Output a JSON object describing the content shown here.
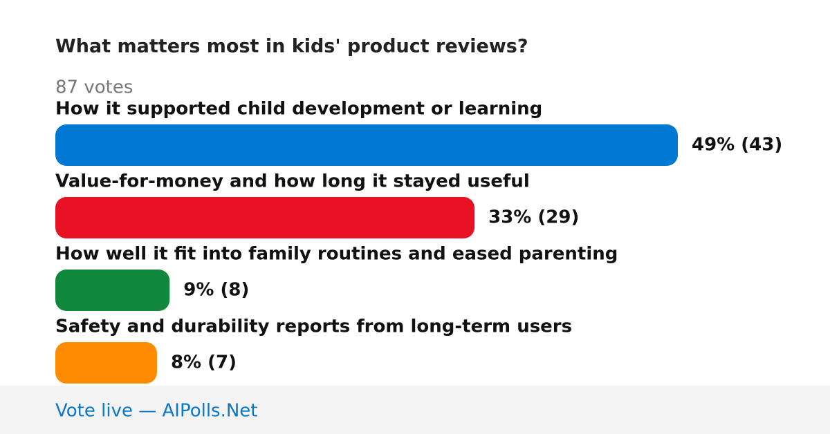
{
  "chart_data": {
    "type": "hbar",
    "title": "What matters most in kids' product reviews?",
    "subtitle": "87 votes",
    "categories": [
      "How it supported child development or learning",
      "Value-for-money and how long it stayed useful",
      "How well it fit into family routines and eased parenting",
      "Safety and durability reports from long-term users"
    ],
    "values": [
      49,
      33,
      9,
      8
    ],
    "value_labels": [
      "49% (43)",
      "33% (29)",
      "9% (8)",
      "8% (7)"
    ],
    "colors": [
      "#0078d4",
      "#e81224",
      "#10893e",
      "#ff8c00"
    ]
  },
  "footer": "Vote live — AIPolls.Net"
}
